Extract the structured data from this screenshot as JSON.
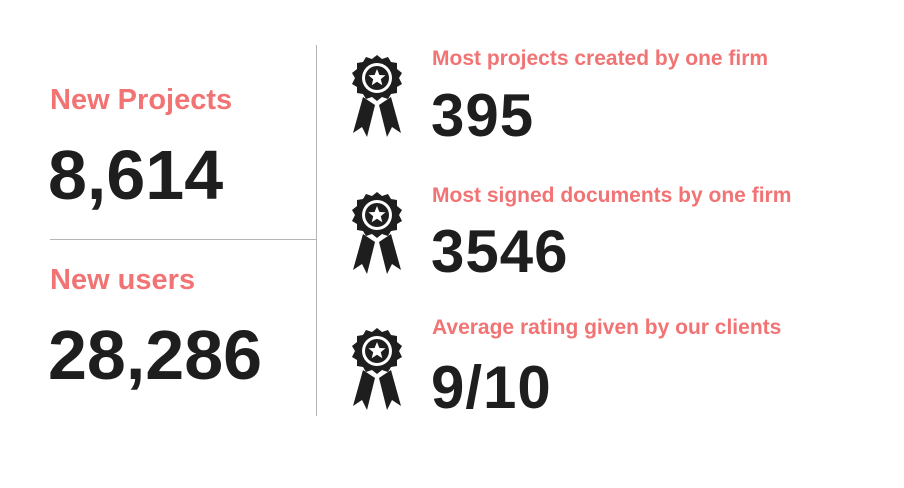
{
  "stats": [
    {
      "label": "New Projects",
      "value": "8,614"
    },
    {
      "label": "New users",
      "value": "28,286"
    }
  ],
  "awards": [
    {
      "label": "Most projects created by one firm",
      "value": "395"
    },
    {
      "label": "Most signed documents by one firm",
      "value": "3546"
    },
    {
      "label": "Average rating given by our clients",
      "value": "9/10"
    }
  ]
}
